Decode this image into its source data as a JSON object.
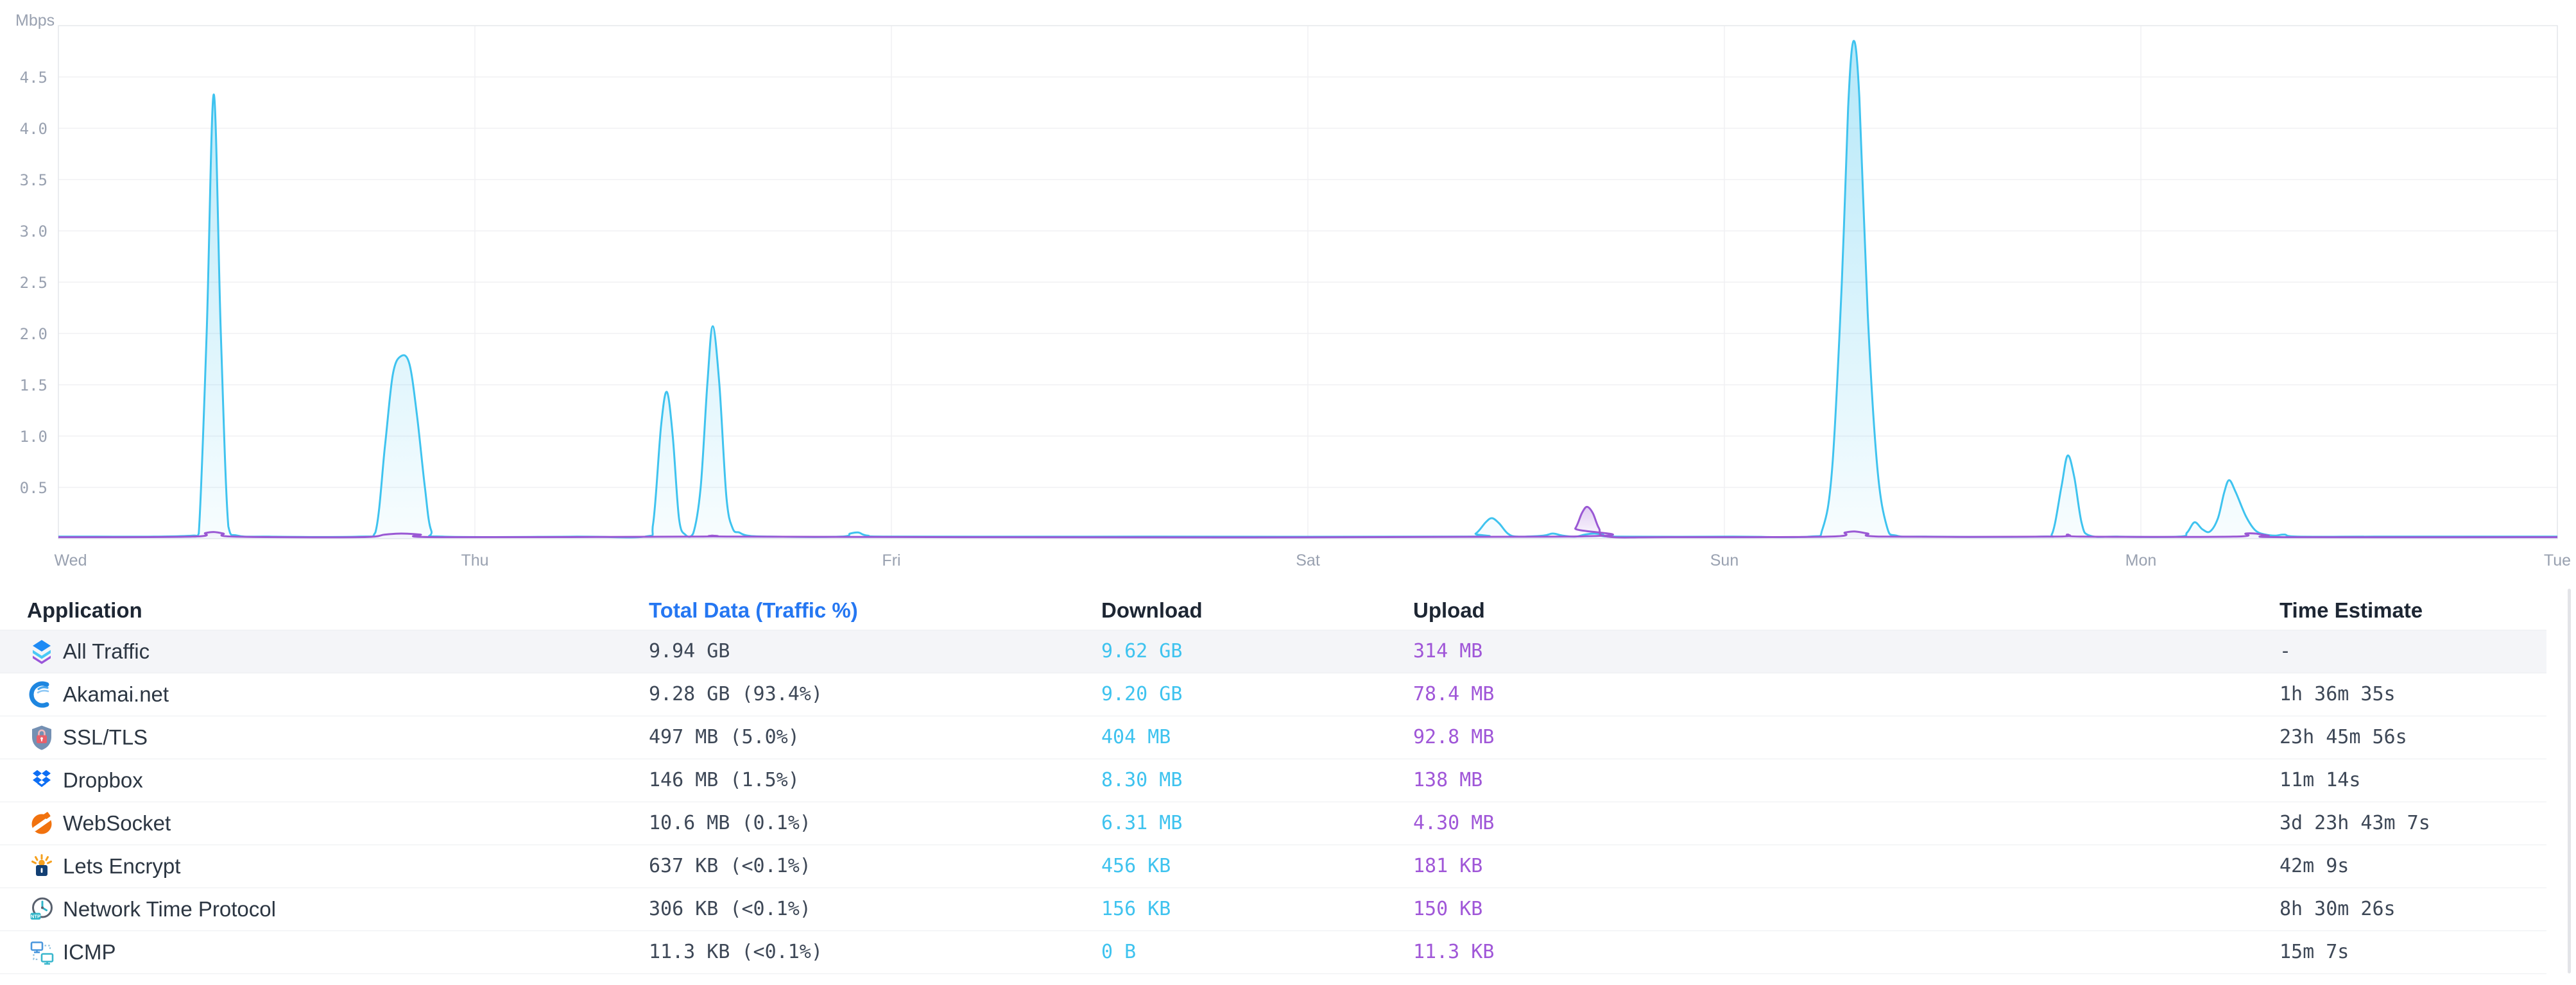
{
  "chart_data": {
    "type": "area",
    "title": "",
    "ylabel": "Mbps",
    "xlabel": "",
    "x_categories": [
      "Wed",
      "Thu",
      "Fri",
      "Sat",
      "Sun",
      "Mon",
      "Tue"
    ],
    "y_ticks": [
      0.5,
      1.0,
      1.5,
      2.0,
      2.5,
      3.0,
      3.5,
      4.0,
      4.5
    ],
    "ylim": [
      0,
      5
    ],
    "grid": true,
    "legend_position": "none",
    "colors": {
      "download_stroke": "#3fc3ef",
      "download_fill_top": "rgba(63,195,239,0.38)",
      "download_fill_bottom": "rgba(63,195,239,0.04)",
      "upload_stroke": "#9a58d4",
      "upload_fill_top": "rgba(154,88,212,0.30)",
      "upload_fill_bottom": "rgba(154,88,212,0.03)",
      "axis_text": "#99a1b0",
      "gridline": "#f0f0f3",
      "border": "#e5e8ec"
    },
    "series": [
      {
        "name": "Download (Mbps)",
        "points": [
          [
            0,
            0.02
          ],
          [
            0.091,
            0.02
          ],
          [
            0.23,
            0.02
          ],
          [
            0.322,
            0.03
          ],
          [
            0.337,
            0.05
          ],
          [
            0.356,
            2.0
          ],
          [
            0.373,
            4.33
          ],
          [
            0.39,
            2.0
          ],
          [
            0.408,
            0.12
          ],
          [
            0.43,
            0.03
          ],
          [
            0.507,
            0.02
          ],
          [
            0.723,
            0.02
          ],
          [
            0.761,
            0.06
          ],
          [
            0.784,
            0.9
          ],
          [
            0.803,
            1.6
          ],
          [
            0.823,
            1.78
          ],
          [
            0.843,
            1.7
          ],
          [
            0.861,
            1.2
          ],
          [
            0.88,
            0.5
          ],
          [
            0.895,
            0.08
          ],
          [
            0.923,
            0.02
          ],
          [
            1.246,
            0.02
          ],
          [
            1.408,
            0.02
          ],
          [
            1.428,
            0.15
          ],
          [
            1.447,
            1.1
          ],
          [
            1.461,
            1.43
          ],
          [
            1.475,
            1.0
          ],
          [
            1.49,
            0.2
          ],
          [
            1.505,
            0.04
          ],
          [
            1.524,
            0.05
          ],
          [
            1.542,
            0.5
          ],
          [
            1.558,
            1.5
          ],
          [
            1.571,
            2.07
          ],
          [
            1.587,
            1.5
          ],
          [
            1.604,
            0.4
          ],
          [
            1.619,
            0.1
          ],
          [
            1.635,
            0.06
          ],
          [
            1.655,
            0.03
          ],
          [
            1.709,
            0.02
          ],
          [
            1.878,
            0.02
          ],
          [
            1.901,
            0.05
          ],
          [
            1.921,
            0.06
          ],
          [
            1.943,
            0.03
          ],
          [
            2.017,
            0.02
          ],
          [
            2.633,
            0.02
          ],
          [
            3.373,
            0.02
          ],
          [
            3.403,
            0.05
          ],
          [
            3.427,
            0.16
          ],
          [
            3.442,
            0.2
          ],
          [
            3.459,
            0.15
          ],
          [
            3.48,
            0.05
          ],
          [
            3.503,
            0.02
          ],
          [
            3.565,
            0.03
          ],
          [
            3.588,
            0.05
          ],
          [
            3.612,
            0.03
          ],
          [
            3.642,
            0.02
          ],
          [
            3.665,
            0.04
          ],
          [
            3.688,
            0.05
          ],
          [
            3.708,
            0.04
          ],
          [
            3.735,
            0.02
          ],
          [
            4.02,
            0.02
          ],
          [
            4.205,
            0.02
          ],
          [
            4.236,
            0.1
          ],
          [
            4.259,
            0.7
          ],
          [
            4.282,
            2.5
          ],
          [
            4.297,
            4.2
          ],
          [
            4.31,
            4.85
          ],
          [
            4.324,
            4.3
          ],
          [
            4.344,
            2.2
          ],
          [
            4.367,
            0.7
          ],
          [
            4.39,
            0.12
          ],
          [
            4.413,
            0.03
          ],
          [
            4.482,
            0.02
          ],
          [
            4.76,
            0.02
          ],
          [
            4.787,
            0.05
          ],
          [
            4.809,
            0.5
          ],
          [
            4.824,
            0.81
          ],
          [
            4.84,
            0.6
          ],
          [
            4.858,
            0.15
          ],
          [
            4.877,
            0.03
          ],
          [
            4.944,
            0.02
          ],
          [
            5.091,
            0.02
          ],
          [
            5.111,
            0.06
          ],
          [
            5.129,
            0.16
          ],
          [
            5.148,
            0.09
          ],
          [
            5.166,
            0.07
          ],
          [
            5.185,
            0.2
          ],
          [
            5.2,
            0.45
          ],
          [
            5.212,
            0.57
          ],
          [
            5.228,
            0.45
          ],
          [
            5.252,
            0.22
          ],
          [
            5.275,
            0.08
          ],
          [
            5.299,
            0.04
          ],
          [
            5.322,
            0.03
          ],
          [
            5.345,
            0.04
          ],
          [
            5.376,
            0.02
          ],
          [
            5.561,
            0.02
          ],
          [
            6,
            0.02
          ]
        ]
      },
      {
        "name": "Upload (Mbps)",
        "points": [
          [
            0,
            0.015
          ],
          [
            0.322,
            0.02
          ],
          [
            0.353,
            0.055
          ],
          [
            0.373,
            0.065
          ],
          [
            0.396,
            0.05
          ],
          [
            0.422,
            0.02
          ],
          [
            0.723,
            0.015
          ],
          [
            0.784,
            0.04
          ],
          [
            0.823,
            0.05
          ],
          [
            0.869,
            0.04
          ],
          [
            0.908,
            0.015
          ],
          [
            1.524,
            0.02
          ],
          [
            1.57,
            0.03
          ],
          [
            1.616,
            0.02
          ],
          [
            2.171,
            0.015
          ],
          [
            3.619,
            0.02
          ],
          [
            3.642,
            0.1
          ],
          [
            3.658,
            0.25
          ],
          [
            3.67,
            0.31
          ],
          [
            3.684,
            0.25
          ],
          [
            3.699,
            0.1
          ],
          [
            3.719,
            0.02
          ],
          [
            3.866,
            0.015
          ],
          [
            4.251,
            0.02
          ],
          [
            4.29,
            0.06
          ],
          [
            4.313,
            0.07
          ],
          [
            4.344,
            0.05
          ],
          [
            4.382,
            0.02
          ],
          [
            4.79,
            0.02
          ],
          [
            4.824,
            0.04
          ],
          [
            4.86,
            0.02
          ],
          [
            5.222,
            0.02
          ],
          [
            5.252,
            0.05
          ],
          [
            5.275,
            0.05
          ],
          [
            5.306,
            0.03
          ],
          [
            5.345,
            0.015
          ],
          [
            6,
            0.015
          ]
        ]
      }
    ]
  },
  "table": {
    "columns": {
      "application": "Application",
      "total": "Total Data (Traffic %)",
      "download": "Download",
      "upload": "Upload",
      "time": "Time Estimate"
    },
    "accent_color": "#2577f2",
    "download_color": "#3fc3ef",
    "upload_color": "#a057d8",
    "rows": [
      {
        "icon": "all-traffic",
        "app": "All Traffic",
        "total": "9.94 GB",
        "download": "9.62 GB",
        "upload": "314 MB",
        "time": "-",
        "highlighted": true
      },
      {
        "icon": "akamai",
        "app": "Akamai.net",
        "total": "9.28 GB (93.4%)",
        "download": "9.20 GB",
        "upload": "78.4 MB",
        "time": "1h 36m 35s",
        "highlighted": false
      },
      {
        "icon": "ssl-tls",
        "app": "SSL/TLS",
        "total": "497 MB (5.0%)",
        "download": "404 MB",
        "upload": "92.8 MB",
        "time": "23h 45m 56s",
        "highlighted": false
      },
      {
        "icon": "dropbox",
        "app": "Dropbox",
        "total": "146 MB (1.5%)",
        "download": "8.30 MB",
        "upload": "138 MB",
        "time": "11m 14s",
        "highlighted": false
      },
      {
        "icon": "websocket",
        "app": "WebSocket",
        "total": "10.6 MB (0.1%)",
        "download": "6.31 MB",
        "upload": "4.30 MB",
        "time": "3d 23h 43m 7s",
        "highlighted": false
      },
      {
        "icon": "lets-encrypt",
        "app": "Lets Encrypt",
        "total": "637 KB (<0.1%)",
        "download": "456 KB",
        "upload": "181 KB",
        "time": "42m 9s",
        "highlighted": false
      },
      {
        "icon": "ntp",
        "app": "Network Time Protocol",
        "total": "306 KB (<0.1%)",
        "download": "156 KB",
        "upload": "150 KB",
        "time": "8h 30m 26s",
        "highlighted": false
      },
      {
        "icon": "icmp",
        "app": "ICMP",
        "total": "11.3 KB (<0.1%)",
        "download": "0 B",
        "upload": "11.3 KB",
        "time": "15m 7s",
        "highlighted": false
      }
    ]
  }
}
